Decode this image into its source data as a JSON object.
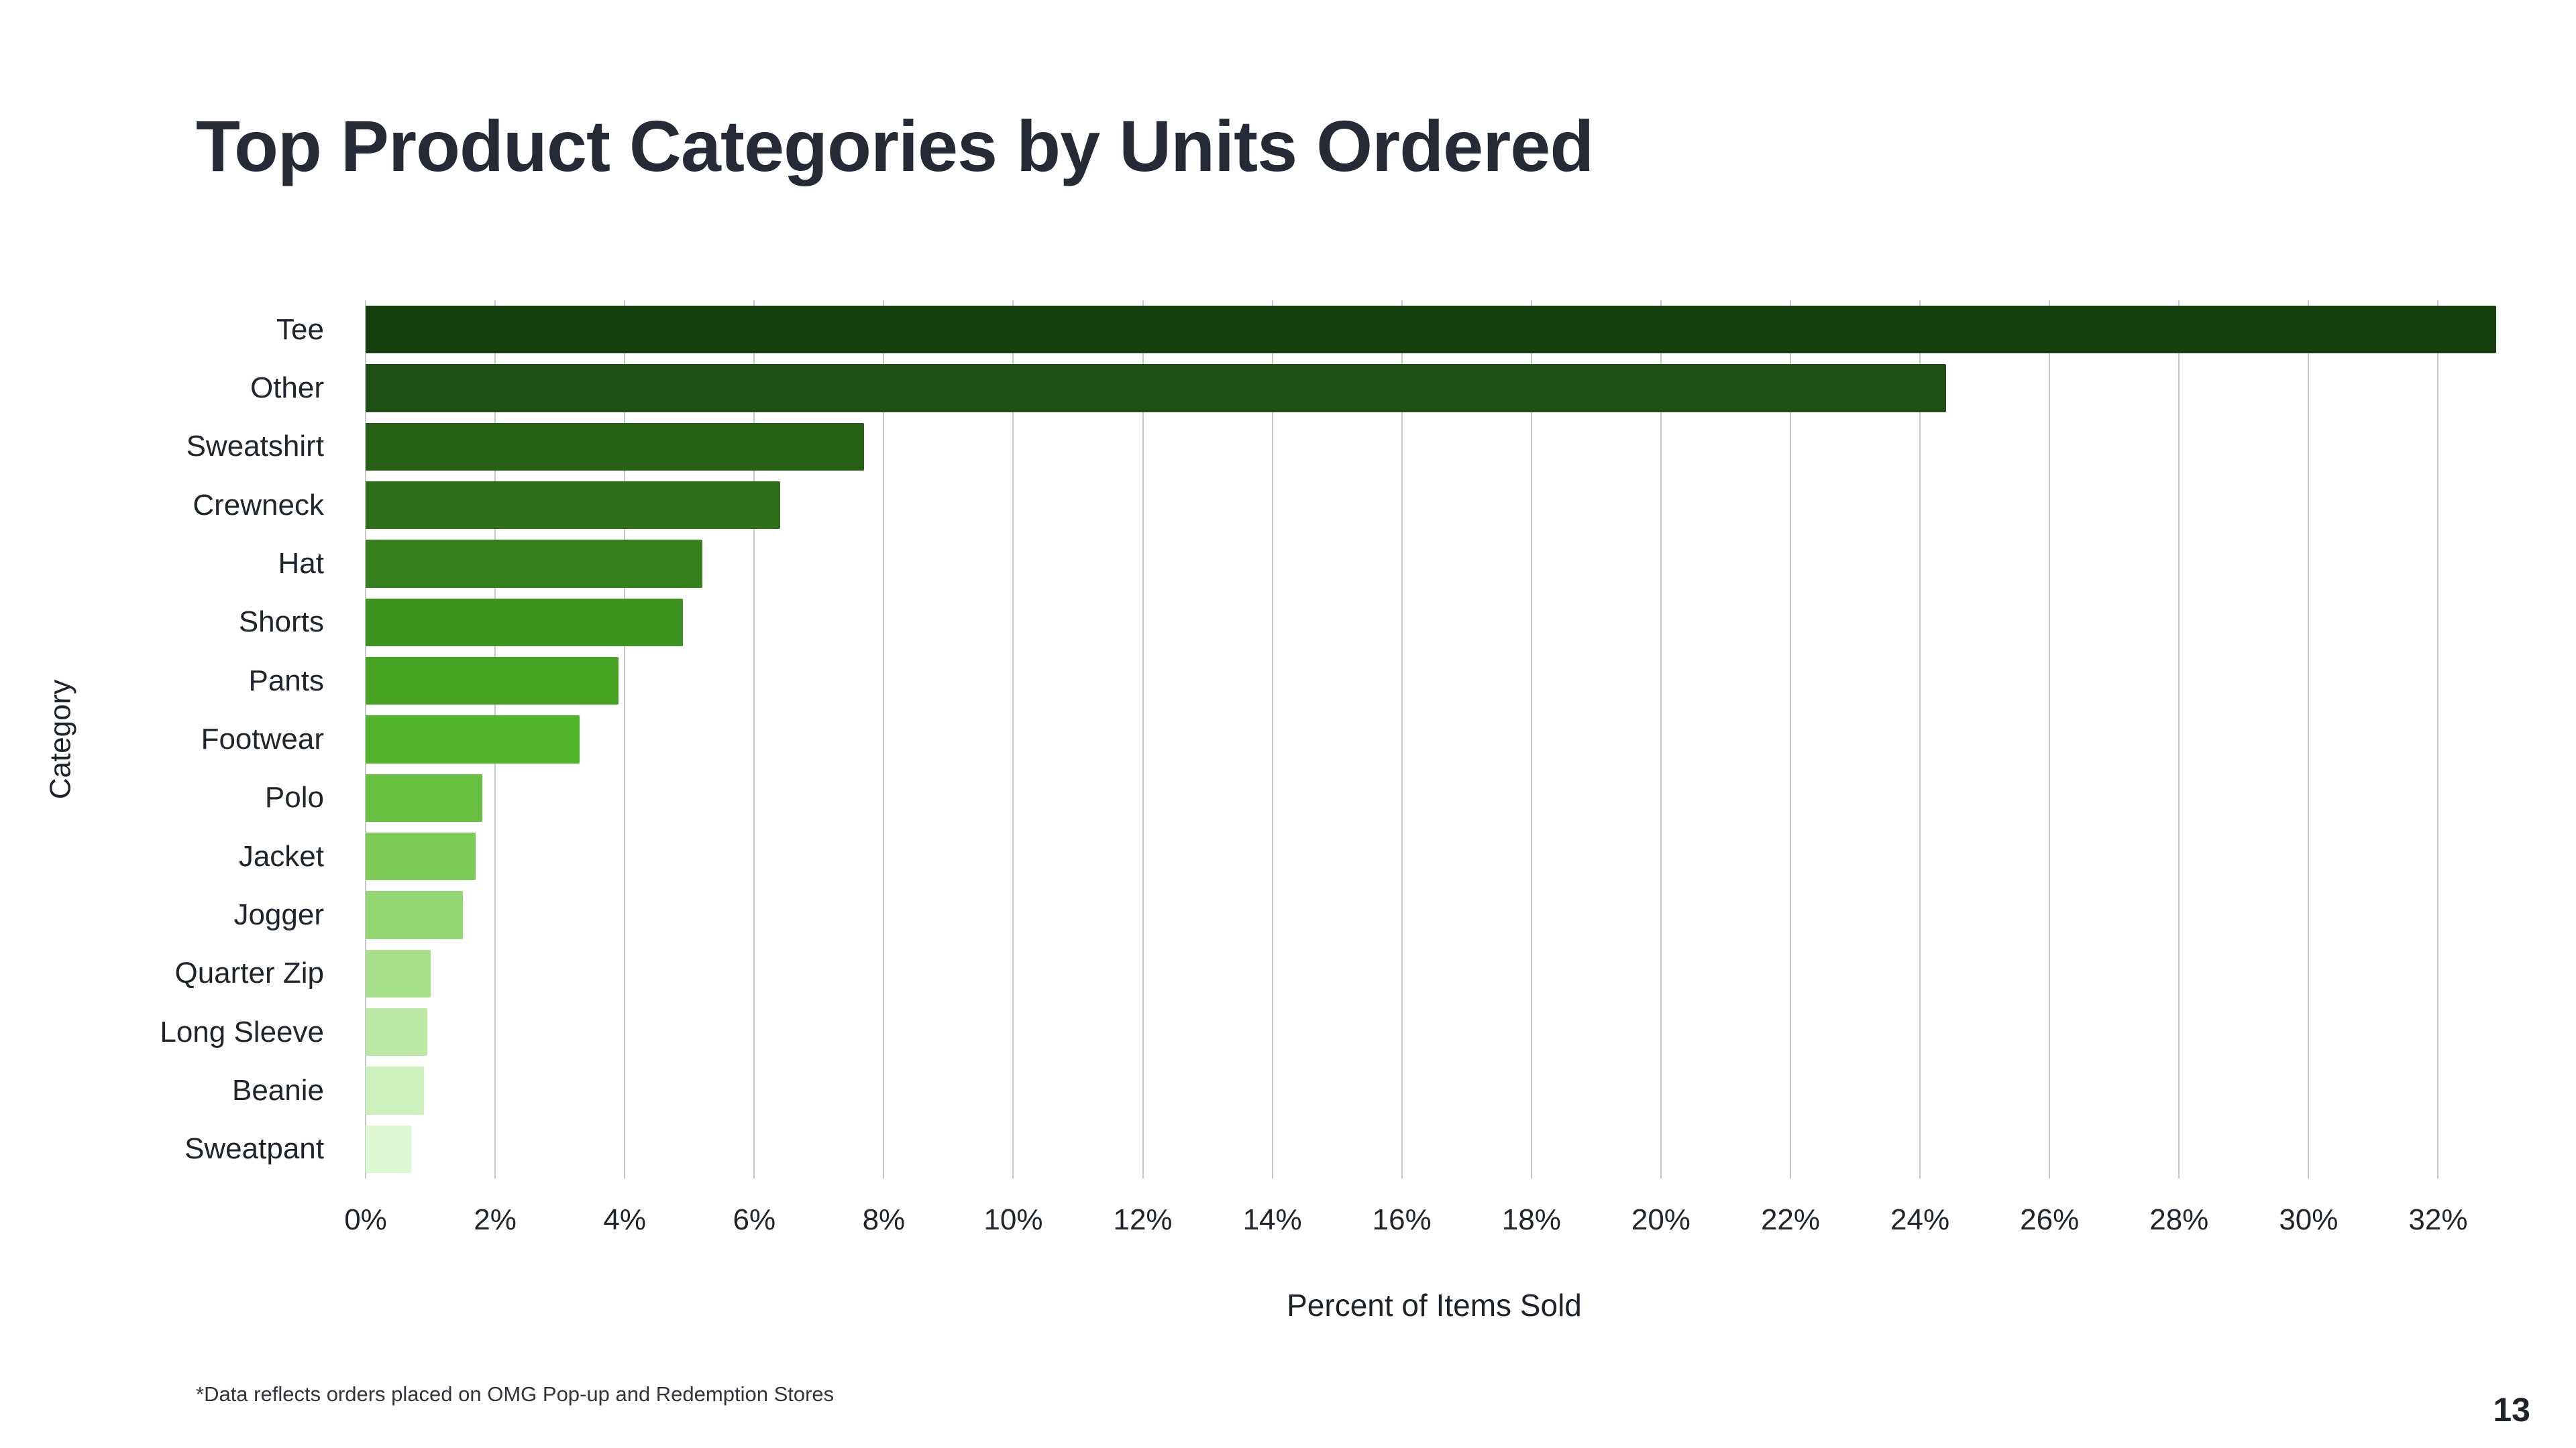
{
  "page": {
    "title": "Top Product Categories by Units Ordered",
    "footnote": "*Data reflects orders placed on OMG Pop-up and Redemption Stores",
    "page_number": "13"
  },
  "chart_data": {
    "type": "bar",
    "orientation": "horizontal",
    "title": "Top Product Categories by Units Ordered",
    "xlabel": "Percent of Items Sold",
    "ylabel": "Category",
    "xlim": [
      0,
      33
    ],
    "x_tick_step": 2,
    "x_tick_max": 32,
    "x_tick_suffix": "%",
    "grid": true,
    "legend": false,
    "categories": [
      "Tee",
      "Other",
      "Sweatshirt",
      "Crewneck",
      "Hat",
      "Shorts",
      "Pants",
      "Footwear",
      "Polo",
      "Jacket",
      "Jogger",
      "Quarter Zip",
      "Long Sleeve",
      "Beanie",
      "Sweatpant"
    ],
    "values": [
      32.9,
      24.4,
      7.7,
      6.4,
      5.2,
      4.9,
      3.9,
      3.3,
      1.8,
      1.7,
      1.5,
      1.0,
      0.95,
      0.9,
      0.7
    ],
    "bar_colors": [
      "#17400f",
      "#1e4f13",
      "#266016",
      "#2e7019",
      "#36811c",
      "#3e921f",
      "#46a322",
      "#51b42a",
      "#67c040",
      "#7dcb58",
      "#93d672",
      "#a8e08c",
      "#bbe9a5",
      "#ccf0bb",
      "#def7d3"
    ],
    "gridline_color": "#c4c6c8"
  }
}
